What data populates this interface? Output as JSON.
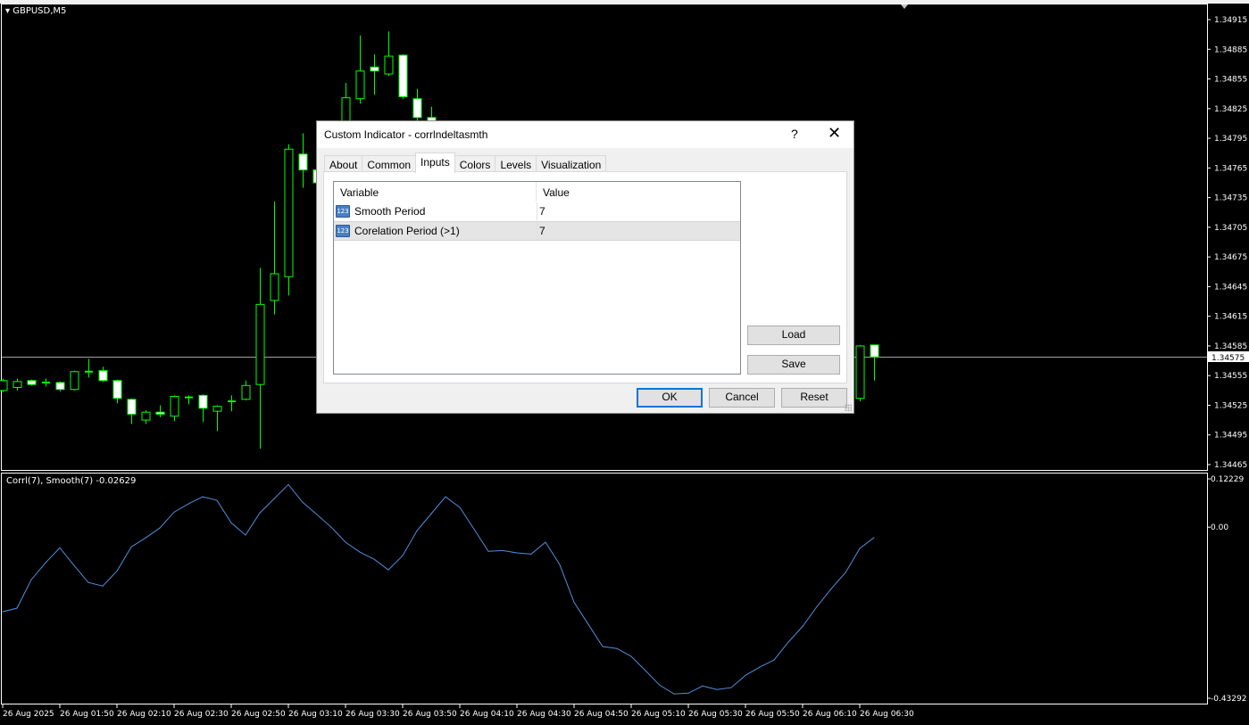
{
  "chart": {
    "symbol_label": "GBPUSD,M5",
    "indicator_label": "Corrl(7), Smooth(7) -0.02629",
    "current_price": "1.34575",
    "colors": {
      "background": "#000000",
      "candle_outline": "#00ff00",
      "bear_fill": "#ffffff",
      "bull_fill": "#000000",
      "indicator_line": "#4f8fdc",
      "grid_border": "#ffffff"
    }
  },
  "chart_data": [
    {
      "type": "candlestick",
      "title": "GBPUSD,M5",
      "ylim": [
        1.34465,
        1.34915
      ],
      "price_ticks": [
        "1.34915",
        "1.34885",
        "1.34855",
        "1.34825",
        "1.34795",
        "1.34765",
        "1.34735",
        "1.34705",
        "1.34675",
        "1.34645",
        "1.34615",
        "1.34585",
        "1.34555",
        "1.34525",
        "1.34495",
        "1.34465"
      ],
      "note_hidden": null,
      "ohlc": [
        [
          1.3454,
          1.34552,
          1.34538,
          1.3455
        ],
        [
          1.34543,
          1.34552,
          1.3454,
          1.34549
        ],
        [
          1.3455,
          1.34551,
          1.34545,
          1.34546
        ],
        [
          1.34548,
          1.34552,
          1.34544,
          1.34548
        ],
        [
          1.34548,
          1.34549,
          1.34539,
          1.34541
        ],
        [
          1.34541,
          1.3456,
          1.3454,
          1.34559
        ],
        [
          1.34559,
          1.34572,
          1.34553,
          1.34559
        ],
        [
          1.3456,
          1.34564,
          1.34549,
          1.3455
        ],
        [
          1.3455,
          1.34551,
          1.34527,
          1.34532
        ],
        [
          1.34531,
          1.34532,
          1.34506,
          1.34516
        ],
        [
          1.3451,
          1.3452,
          1.34506,
          1.34518
        ],
        [
          1.34518,
          1.34525,
          1.34513,
          1.34516
        ],
        [
          1.34514,
          1.34535,
          1.34509,
          1.34534
        ],
        [
          1.34533,
          1.34535,
          1.34526,
          1.34533
        ],
        [
          1.34535,
          1.34536,
          1.34508,
          1.34522
        ],
        [
          1.34519,
          1.34525,
          1.34499,
          1.34524
        ],
        [
          1.34529,
          1.34535,
          1.34519,
          1.34529
        ],
        [
          1.34531,
          1.3455,
          1.3453,
          1.34545
        ],
        [
          1.34546,
          1.34664,
          1.34481,
          1.34627
        ],
        [
          1.34631,
          1.34731,
          1.34617,
          1.34658
        ],
        [
          1.34655,
          1.34789,
          1.34636,
          1.34784
        ],
        [
          1.34779,
          1.348,
          1.34745,
          1.34763
        ],
        [
          1.34763,
          1.34765,
          1.34745,
          1.3475
        ],
        null,
        [
          1.34804,
          1.34851,
          1.348,
          1.34836
        ],
        [
          1.34835,
          1.34899,
          1.3483,
          1.34863
        ],
        [
          1.34867,
          1.3488,
          1.34839,
          1.34863
        ],
        [
          1.3486,
          1.34903,
          1.34858,
          1.34878
        ],
        [
          1.34879,
          1.3488,
          1.34835,
          1.34837
        ],
        [
          1.34835,
          1.34845,
          1.34813,
          1.34816
        ],
        [
          1.34816,
          1.34827,
          1.348,
          1.34805
        ],
        null,
        null,
        null,
        null,
        null,
        null,
        null,
        null,
        null,
        null,
        null,
        null,
        null,
        null,
        null,
        null,
        null,
        null,
        null,
        null,
        null,
        null,
        null,
        null,
        null,
        null,
        null,
        null,
        null,
        [
          1.34532,
          1.34586,
          1.34529,
          1.34585
        ],
        [
          1.34586,
          1.34586,
          1.3455,
          1.34574
        ]
      ]
    },
    {
      "type": "line",
      "series": [
        {
          "name": "Corrl(7), Smooth(7)",
          "values": [
            -0.214,
            -0.205,
            -0.133,
            -0.09,
            -0.052,
            -0.097,
            -0.14,
            -0.149,
            -0.111,
            -0.05,
            -0.027,
            -0.002,
            0.038,
            0.059,
            0.077,
            0.068,
            0.011,
            -0.02,
            0.036,
            0.072,
            0.108,
            0.063,
            0.032,
            0.0,
            -0.038,
            -0.063,
            -0.081,
            -0.108,
            -0.072,
            -0.009,
            0.034,
            0.077,
            0.05,
            -0.005,
            -0.061,
            -0.059,
            -0.065,
            -0.068,
            -0.038,
            -0.095,
            -0.19,
            -0.246,
            -0.302,
            -0.307,
            -0.327,
            -0.363,
            -0.4,
            -0.422,
            -0.42,
            -0.402,
            -0.411,
            -0.406,
            -0.375,
            -0.354,
            -0.336,
            -0.291,
            -0.251,
            -0.201,
            -0.156,
            -0.115,
            -0.054,
            -0.02629
          ]
        }
      ],
      "ylim": [
        -0.43292,
        0.12229
      ],
      "y_ticks": [
        "0.12229",
        "0.00",
        "-0.43292"
      ]
    }
  ],
  "time_axis": [
    "26 Aug 2025",
    "26 Aug 01:50",
    "26 Aug 02:10",
    "26 Aug 02:30",
    "26 Aug 02:50",
    "26 Aug 03:10",
    "26 Aug 03:30",
    "26 Aug 03:50",
    "26 Aug 04:10",
    "26 Aug 04:30",
    "26 Aug 04:50",
    "26 Aug 05:10",
    "26 Aug 05:30",
    "26 Aug 05:50",
    "26 Aug 06:10",
    "26 Aug 06:30"
  ],
  "dialog": {
    "title": "Custom Indicator - corrlndeltasmth",
    "help": "?",
    "close": "✕",
    "tabs": [
      "About",
      "Common",
      "Inputs",
      "Colors",
      "Levels",
      "Visualization"
    ],
    "active_tab": "Inputs",
    "table": {
      "headers": [
        "Variable",
        "Value"
      ],
      "rows": [
        {
          "icon": "123",
          "variable": "Smooth Period",
          "value": "7"
        },
        {
          "icon": "123",
          "variable": "Corelation Period (>1)",
          "value": "7"
        }
      ]
    },
    "load": "Load",
    "save": "Save",
    "ok": "OK",
    "cancel": "Cancel",
    "reset": "Reset"
  }
}
